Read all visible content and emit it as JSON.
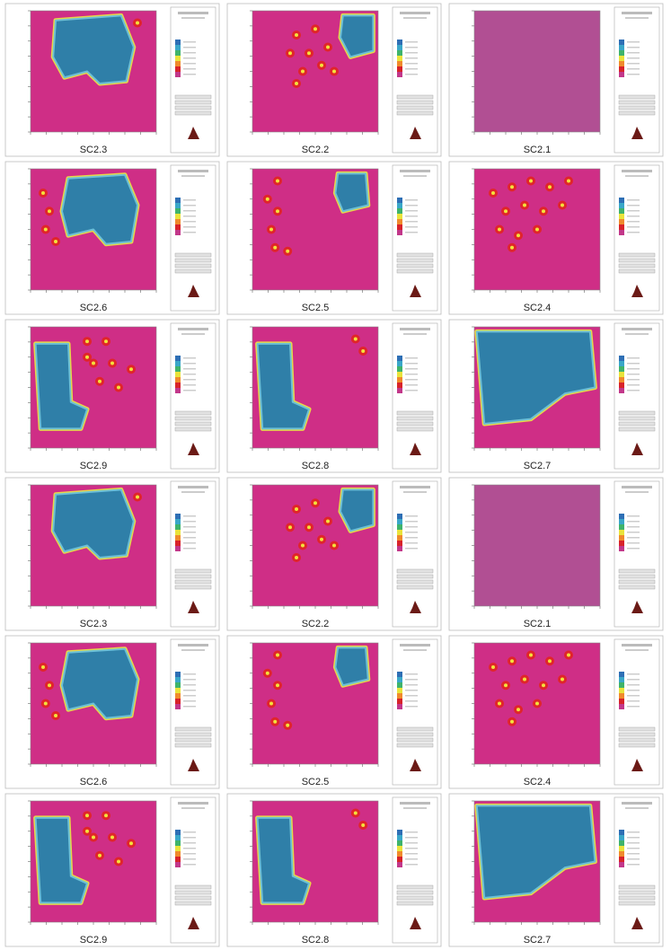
{
  "panels": [
    {
      "label": "SC2.3"
    },
    {
      "label": "SC2.2"
    },
    {
      "label": "SC2.1"
    },
    {
      "label": "SC2.6"
    },
    {
      "label": "SC2.5"
    },
    {
      "label": "SC2.4"
    },
    {
      "label": "SC2.9"
    },
    {
      "label": "SC2.8"
    },
    {
      "label": "SC2.7"
    },
    {
      "label": "SC2.3"
    },
    {
      "label": "SC2.2"
    },
    {
      "label": "SC2.1"
    },
    {
      "label": "SC2.6"
    },
    {
      "label": "SC2.5"
    },
    {
      "label": "SC2.4"
    },
    {
      "label": "SC2.9"
    },
    {
      "label": "SC2.8"
    },
    {
      "label": "SC2.7"
    }
  ]
}
